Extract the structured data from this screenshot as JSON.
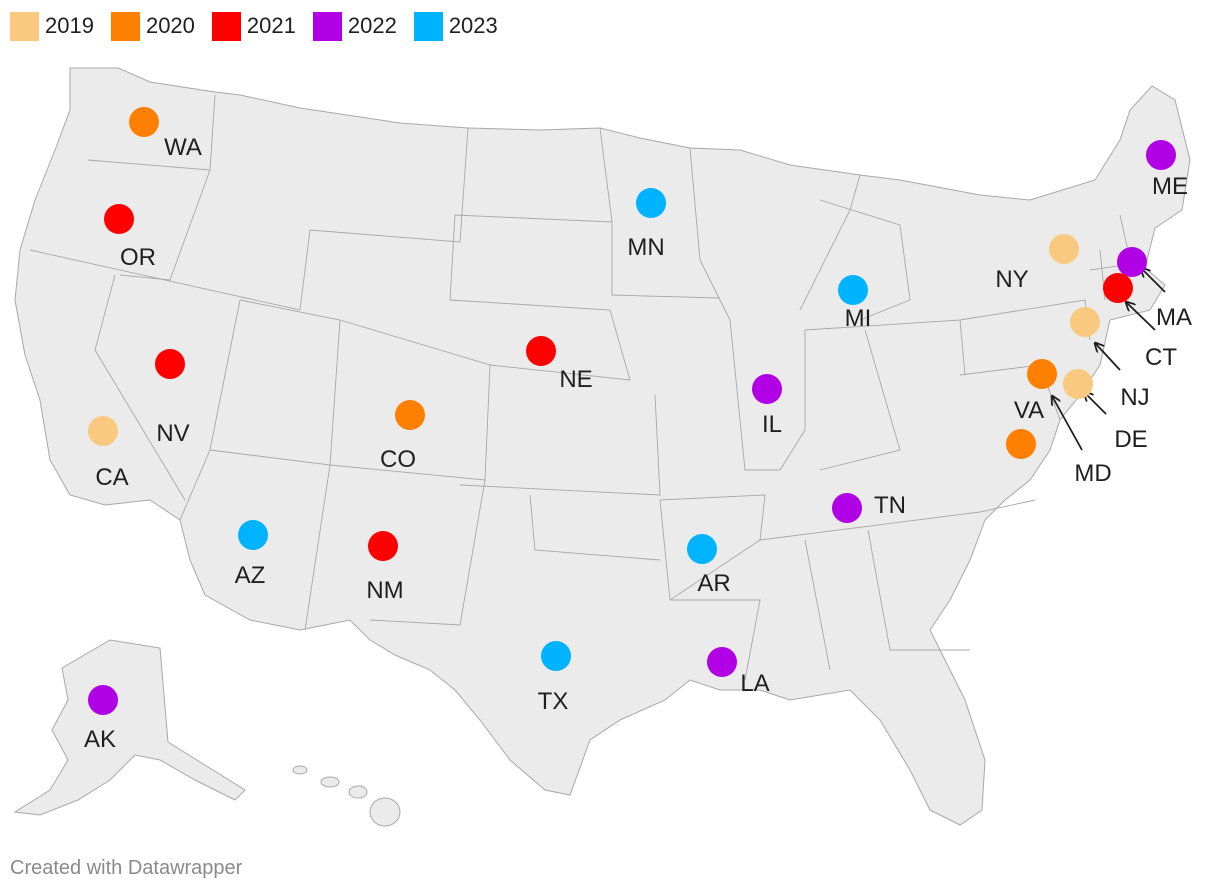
{
  "legend": {
    "items": [
      {
        "label": "2019",
        "color": "#f9c97f"
      },
      {
        "label": "2020",
        "color": "#ff7f00"
      },
      {
        "label": "2021",
        "color": "#ff0000"
      },
      {
        "label": "2022",
        "color": "#b200e6"
      },
      {
        "label": "2023",
        "color": "#00b3ff"
      }
    ]
  },
  "map": {
    "colors": {
      "land": "#ebebeb",
      "borders": "#a8a8a8"
    },
    "markers": [
      {
        "state": "WA",
        "year": "2020"
      },
      {
        "state": "OR",
        "year": "2021"
      },
      {
        "state": "CA",
        "year": "2019"
      },
      {
        "state": "NV",
        "year": "2021"
      },
      {
        "state": "AZ",
        "year": "2023"
      },
      {
        "state": "CO",
        "year": "2020"
      },
      {
        "state": "NM",
        "year": "2021"
      },
      {
        "state": "NE",
        "year": "2021"
      },
      {
        "state": "TX",
        "year": "2023"
      },
      {
        "state": "MN",
        "year": "2023"
      },
      {
        "state": "AR",
        "year": "2023"
      },
      {
        "state": "LA",
        "year": "2022"
      },
      {
        "state": "IL",
        "year": "2022"
      },
      {
        "state": "TN",
        "year": "2022"
      },
      {
        "state": "MI",
        "year": "2023"
      },
      {
        "state": "NY",
        "year": "2019"
      },
      {
        "state": "ME",
        "year": "2022"
      },
      {
        "state": "MA",
        "year": "2022"
      },
      {
        "state": "CT",
        "year": "2021"
      },
      {
        "state": "NJ",
        "year": "2019"
      },
      {
        "state": "DE",
        "year": "2019"
      },
      {
        "state": "MD",
        "year": "2020"
      },
      {
        "state": "VA",
        "year": "2020"
      },
      {
        "state": "AK",
        "year": "2022"
      }
    ]
  },
  "footer": {
    "credit": "Created with Datawrapper"
  }
}
